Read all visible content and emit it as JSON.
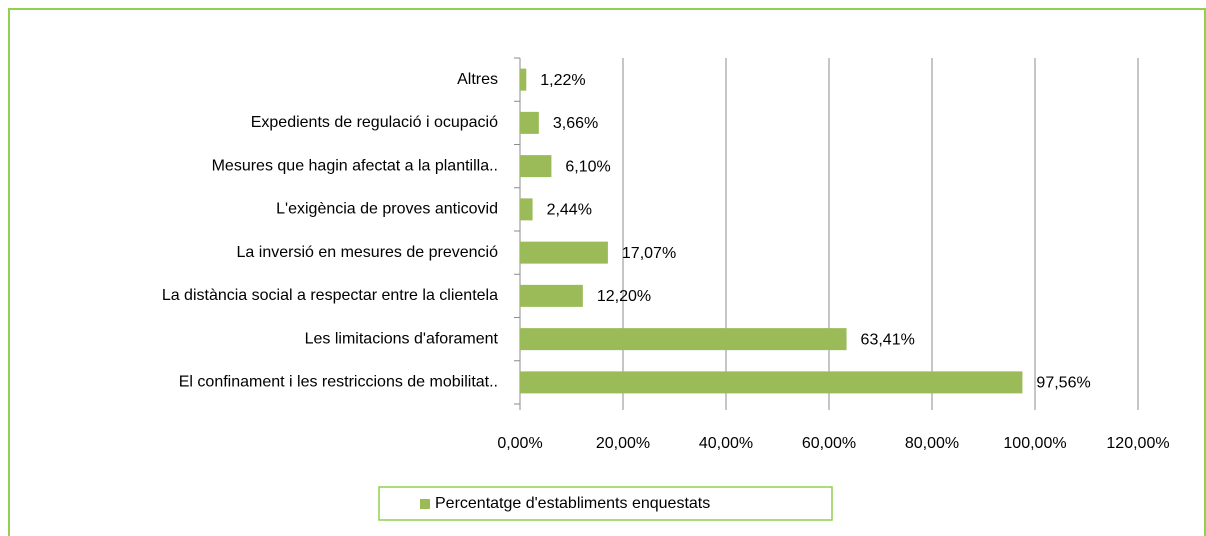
{
  "chart_data": {
    "type": "bar",
    "orientation": "horizontal",
    "categories": [
      "Altres",
      "Expedients de regulació i ocupació",
      "Mesures que hagin afectat a la plantilla..",
      "L'exigència de proves anticovid",
      "La inversió en mesures de prevenció",
      "La distància social a respectar entre la clientela",
      "Les limitacions d'aforament",
      "El confinament i les restriccions de mobilitat.."
    ],
    "series": [
      {
        "name": "Percentatge d'establiments enquestats",
        "color": "#9bbb59",
        "values": [
          1.22,
          3.66,
          6.1,
          2.44,
          17.07,
          12.2,
          63.41,
          97.56
        ],
        "value_labels": [
          "1,22%",
          "3,66%",
          "6,10%",
          "2,44%",
          "17,07%",
          "12,20%",
          "63,41%",
          "97,56%"
        ]
      }
    ],
    "xlim": [
      0,
      120
    ],
    "xticks": [
      {
        "value": 0,
        "label": "0,00%"
      },
      {
        "value": 20,
        "label": "20,00%"
      },
      {
        "value": 40,
        "label": "40,00%"
      },
      {
        "value": 60,
        "label": "60,00%"
      },
      {
        "value": 80,
        "label": "80,00%"
      },
      {
        "value": 100,
        "label": "100,00%"
      },
      {
        "value": 120,
        "label": "120,00%"
      }
    ],
    "grid": true,
    "legend": "bottom"
  }
}
